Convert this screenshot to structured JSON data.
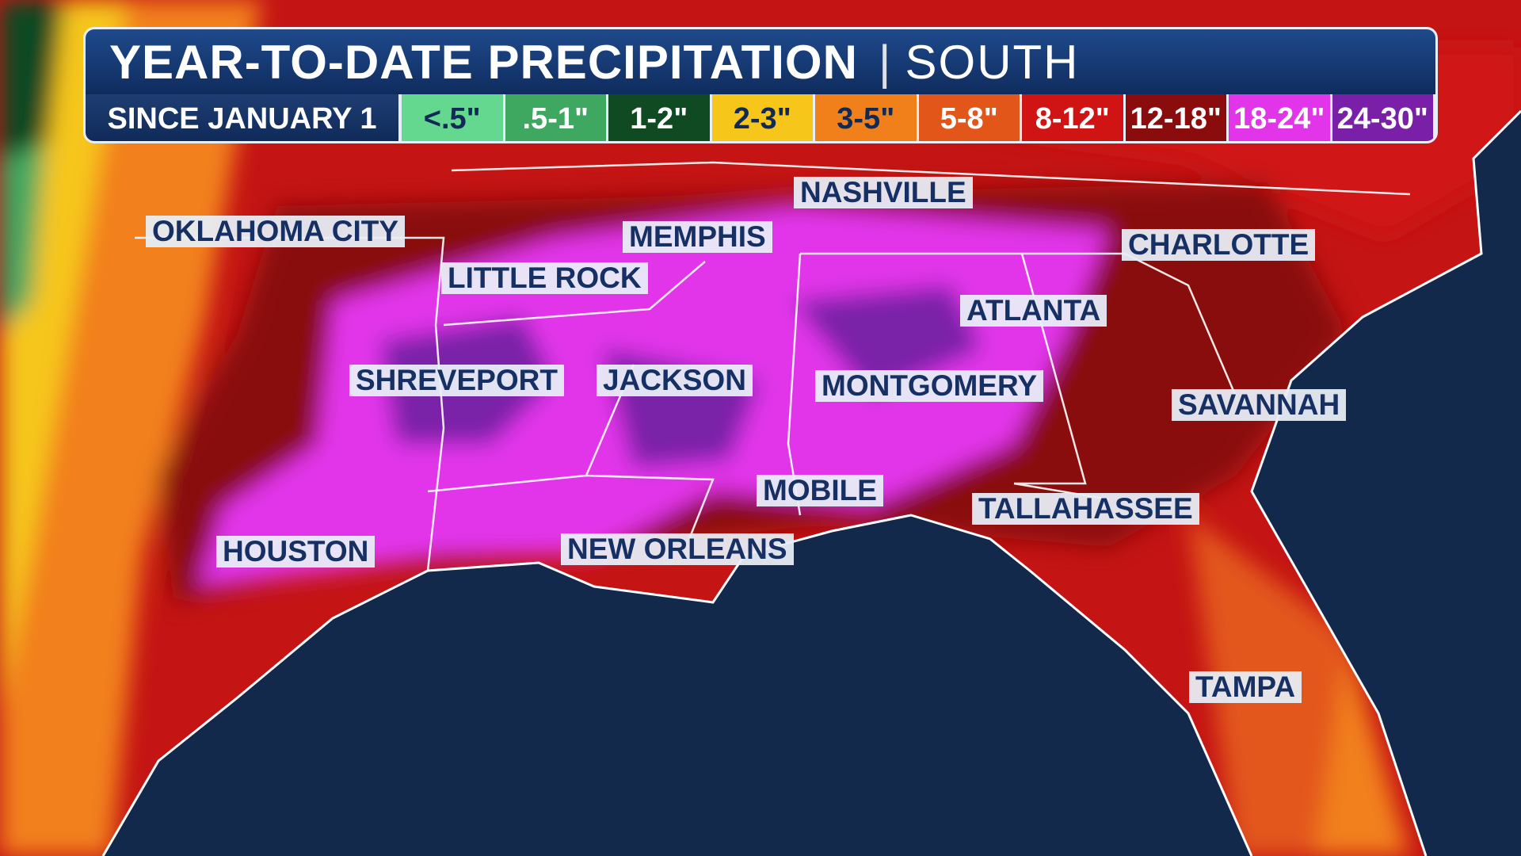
{
  "header": {
    "title": "YEAR-TO-DATE PRECIPITATION",
    "separator": "|",
    "region": "SOUTH"
  },
  "legend": {
    "label": "SINCE JANUARY 1",
    "items": [
      {
        "label": "<.5\"",
        "color": "#63d88e"
      },
      {
        "label": ".5-1\"",
        "color": "#3fa860"
      },
      {
        "label": "1-2\"",
        "color": "#0f4a23"
      },
      {
        "label": "2-3\"",
        "color": "#f6c61a"
      },
      {
        "label": "3-5\"",
        "color": "#f2801a"
      },
      {
        "label": "5-8\"",
        "color": "#e3561a"
      },
      {
        "label": "8-12\"",
        "color": "#d01414"
      },
      {
        "label": "12-18\"",
        "color": "#8a0c0c"
      },
      {
        "label": "18-24\"",
        "color": "#e235ea"
      },
      {
        "label": "24-30\"",
        "color": "#7a20a8"
      }
    ]
  },
  "cities": [
    {
      "label": "OKLAHOMA CITY"
    },
    {
      "label": "LITTLE ROCK"
    },
    {
      "label": "MEMPHIS"
    },
    {
      "label": "NASHVILLE"
    },
    {
      "label": "CHARLOTTE"
    },
    {
      "label": "ATLANTA"
    },
    {
      "label": "SHREVEPORT"
    },
    {
      "label": "JACKSON"
    },
    {
      "label": "MONTGOMERY"
    },
    {
      "label": "SAVANNAH"
    },
    {
      "label": "MOBILE"
    },
    {
      "label": "TALLAHASSEE"
    },
    {
      "label": "HOUSTON"
    },
    {
      "label": "NEW ORLEANS"
    },
    {
      "label": "TAMPA"
    }
  ]
}
